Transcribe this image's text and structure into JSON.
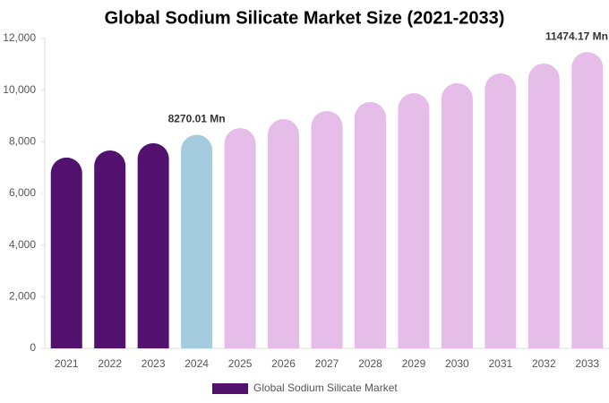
{
  "chart_data": {
    "type": "bar",
    "title": "Global Sodium Silicate Market Size (2021-2033)",
    "categories": [
      "2021",
      "2022",
      "2023",
      "2024",
      "2025",
      "2026",
      "2027",
      "2028",
      "2029",
      "2030",
      "2031",
      "2032",
      "2033"
    ],
    "series": [
      {
        "name": "Global Sodium Silicate Market",
        "color": "#52116f",
        "values": [
          7390,
          7665,
          7945,
          8270.01,
          8530,
          8880,
          9190,
          9540,
          9885,
          10270,
          10650,
          11030,
          11474.17
        ],
        "value_labels": [
          null,
          null,
          null,
          "8270.01 Mn",
          null,
          null,
          null,
          null,
          null,
          null,
          null,
          null,
          "11474.17 Mn"
        ],
        "colors": [
          "#52116f",
          "#52116f",
          "#52116f",
          "#a5cbdf",
          "#e6bce8",
          "#e6bce8",
          "#e6bce8",
          "#e6bce8",
          "#e6bce8",
          "#e6bce8",
          "#e6bce8",
          "#e6bce8",
          "#e6bce8"
        ]
      }
    ],
    "ylim": [
      0,
      12000
    ],
    "yticks": [
      0,
      {
        "value": 2000,
        "label": "2,000"
      },
      {
        "value": 4000,
        "label": "4,000"
      },
      {
        "value": 6000,
        "label": "6,000"
      },
      {
        "value": 8000,
        "label": "8,000"
      },
      {
        "value": 10000,
        "label": "10,000"
      },
      {
        "value": 12000,
        "label": "12,000"
      }
    ],
    "grid": false,
    "legend": "bottom"
  }
}
